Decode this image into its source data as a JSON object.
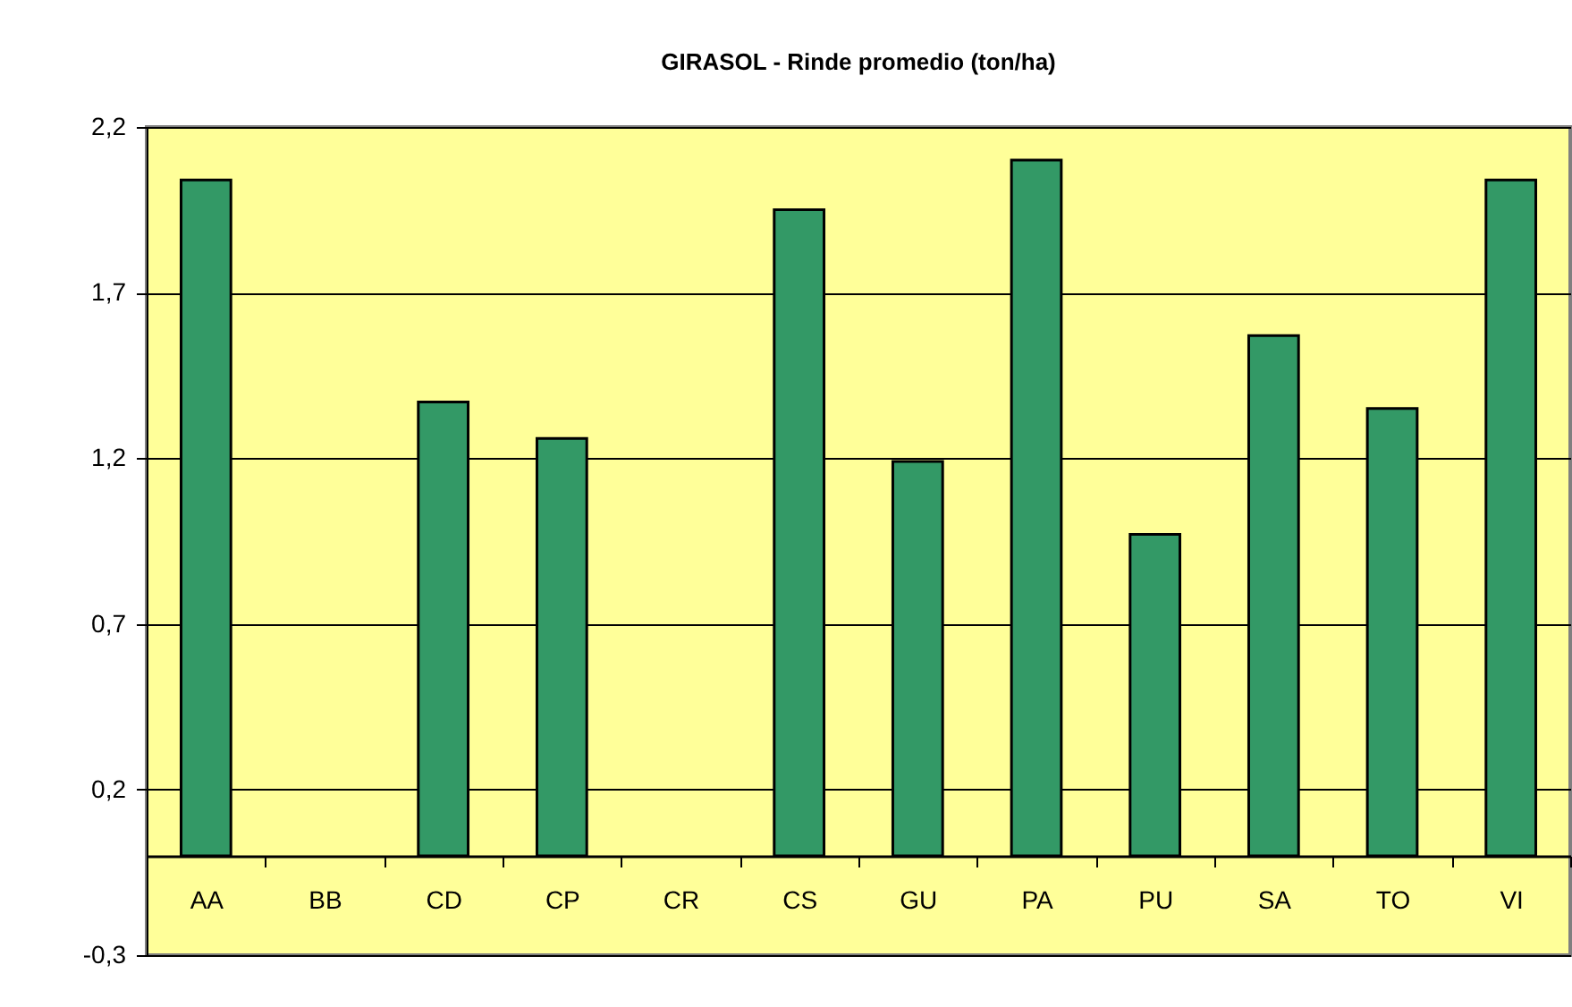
{
  "chart_data": {
    "type": "bar",
    "title": "GIRASOL - Rinde promedio (ton/ha)",
    "categories": [
      "AA",
      "BB",
      "CD",
      "CP",
      "CR",
      "CS",
      "GU",
      "PA",
      "PU",
      "SA",
      "TO",
      "VI"
    ],
    "values": [
      2.04,
      null,
      1.37,
      1.26,
      null,
      1.95,
      1.19,
      2.1,
      0.97,
      1.57,
      1.35,
      2.04
    ],
    "color": "#339966",
    "ylim": [
      -0.3,
      2.2
    ],
    "yticks": [
      {
        "value": -0.3,
        "label": "-0,3"
      },
      {
        "value": 0.2,
        "label": "0,2"
      },
      {
        "value": 0.7,
        "label": "0,7"
      },
      {
        "value": 1.2,
        "label": "1,2"
      },
      {
        "value": 1.7,
        "label": "1,7"
      },
      {
        "value": 2.2,
        "label": "2,2"
      }
    ],
    "grid": "y"
  }
}
